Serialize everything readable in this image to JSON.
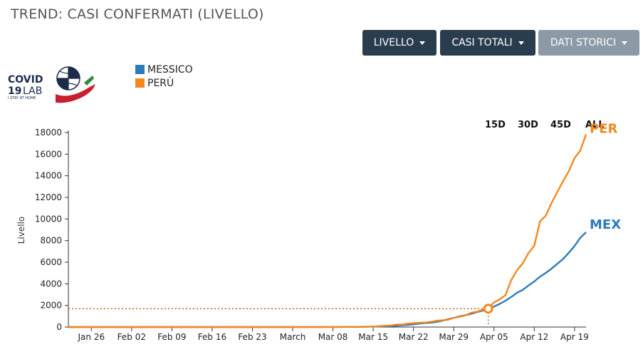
{
  "title": "TREND: CASI CONFERMATI (LIVELLO)",
  "buttons": [
    {
      "label": "LIVELLO"
    },
    {
      "label": "CASI TOTALI"
    },
    {
      "label": "DATI STORICI"
    }
  ],
  "logo": {
    "line1": "COVID",
    "line2a": "19",
    "line2b": "LAB",
    "line3": "I STAY AT HOME"
  },
  "legend": [
    {
      "label": "MESSICO",
      "color": "#2b7bb9"
    },
    {
      "label": "PERÙ",
      "color": "#f5871f"
    }
  ],
  "ranges": [
    "15D",
    "30D",
    "45D",
    "ALL"
  ],
  "chart_data": {
    "type": "line",
    "ylabel": "Livello",
    "ylim": [
      0,
      18000
    ],
    "yticks": [
      0,
      2000,
      4000,
      6000,
      8000,
      10000,
      12000,
      14000,
      16000,
      18000
    ],
    "xticks": [
      "Jan 26",
      "Feb 02",
      "Feb 09",
      "Feb 16",
      "Feb 23",
      "March",
      "Mar 08",
      "Mar 15",
      "Mar 22",
      "Mar 29",
      "Apr 05",
      "Apr 12",
      "Apr 19"
    ],
    "xrange": [
      "2020-01-22",
      "2020-04-20"
    ],
    "marker": {
      "date": "2020-04-04",
      "value": 1700
    },
    "series": [
      {
        "name": "MESSICO",
        "label": "MEX",
        "color": "#2b7bb9",
        "points": [
          [
            "2020-01-22",
            0
          ],
          [
            "2020-02-28",
            0
          ],
          [
            "2020-03-01",
            5
          ],
          [
            "2020-03-05",
            5
          ],
          [
            "2020-03-08",
            7
          ],
          [
            "2020-03-10",
            8
          ],
          [
            "2020-03-12",
            12
          ],
          [
            "2020-03-14",
            26
          ],
          [
            "2020-03-15",
            41
          ],
          [
            "2020-03-16",
            53
          ],
          [
            "2020-03-17",
            82
          ],
          [
            "2020-03-18",
            93
          ],
          [
            "2020-03-19",
            118
          ],
          [
            "2020-03-20",
            164
          ],
          [
            "2020-03-21",
            203
          ],
          [
            "2020-03-22",
            251
          ],
          [
            "2020-03-23",
            316
          ],
          [
            "2020-03-24",
            367
          ],
          [
            "2020-03-25",
            405
          ],
          [
            "2020-03-26",
            475
          ],
          [
            "2020-03-27",
            585
          ],
          [
            "2020-03-28",
            717
          ],
          [
            "2020-03-29",
            848
          ],
          [
            "2020-03-30",
            993
          ],
          [
            "2020-03-31",
            1094
          ],
          [
            "2020-04-01",
            1215
          ],
          [
            "2020-04-02",
            1378
          ],
          [
            "2020-04-03",
            1510
          ],
          [
            "2020-04-04",
            1688
          ],
          [
            "2020-04-05",
            1890
          ],
          [
            "2020-04-06",
            2143
          ],
          [
            "2020-04-07",
            2439
          ],
          [
            "2020-04-08",
            2785
          ],
          [
            "2020-04-09",
            3181
          ],
          [
            "2020-04-10",
            3441
          ],
          [
            "2020-04-11",
            3844
          ],
          [
            "2020-04-12",
            4219
          ],
          [
            "2020-04-13",
            4661
          ],
          [
            "2020-04-14",
            5014
          ],
          [
            "2020-04-15",
            5399
          ],
          [
            "2020-04-16",
            5847
          ],
          [
            "2020-04-17",
            6297
          ],
          [
            "2020-04-18",
            6875
          ],
          [
            "2020-04-19",
            7497
          ],
          [
            "2020-04-20",
            8261
          ],
          [
            "2020-04-21",
            8772
          ]
        ]
      },
      {
        "name": "PERÙ",
        "label": "PER",
        "color": "#f5871f",
        "points": [
          [
            "2020-01-22",
            0
          ],
          [
            "2020-03-05",
            0
          ],
          [
            "2020-03-06",
            1
          ],
          [
            "2020-03-10",
            11
          ],
          [
            "2020-03-12",
            22
          ],
          [
            "2020-03-14",
            38
          ],
          [
            "2020-03-15",
            43
          ],
          [
            "2020-03-16",
            86
          ],
          [
            "2020-03-17",
            117
          ],
          [
            "2020-03-18",
            145
          ],
          [
            "2020-03-19",
            234
          ],
          [
            "2020-03-20",
            234
          ],
          [
            "2020-03-21",
            318
          ],
          [
            "2020-03-22",
            363
          ],
          [
            "2020-03-23",
            395
          ],
          [
            "2020-03-24",
            416
          ],
          [
            "2020-03-25",
            480
          ],
          [
            "2020-03-26",
            580
          ],
          [
            "2020-03-27",
            635
          ],
          [
            "2020-03-28",
            671
          ],
          [
            "2020-03-29",
            852
          ],
          [
            "2020-03-30",
            950
          ],
          [
            "2020-03-31",
            1065
          ],
          [
            "2020-04-01",
            1323
          ],
          [
            "2020-04-02",
            1414
          ],
          [
            "2020-04-03",
            1595
          ],
          [
            "2020-04-04",
            1746
          ],
          [
            "2020-04-05",
            2281
          ],
          [
            "2020-04-06",
            2561
          ],
          [
            "2020-04-07",
            2954
          ],
          [
            "2020-04-08",
            4342
          ],
          [
            "2020-04-09",
            5256
          ],
          [
            "2020-04-10",
            5897
          ],
          [
            "2020-04-11",
            6848
          ],
          [
            "2020-04-12",
            7519
          ],
          [
            "2020-04-13",
            9784
          ],
          [
            "2020-04-14",
            10303
          ],
          [
            "2020-04-15",
            11475
          ],
          [
            "2020-04-16",
            12491
          ],
          [
            "2020-04-17",
            13489
          ],
          [
            "2020-04-18",
            14420
          ],
          [
            "2020-04-19",
            15628
          ],
          [
            "2020-04-20",
            16325
          ],
          [
            "2020-04-21",
            17837
          ]
        ]
      }
    ]
  }
}
